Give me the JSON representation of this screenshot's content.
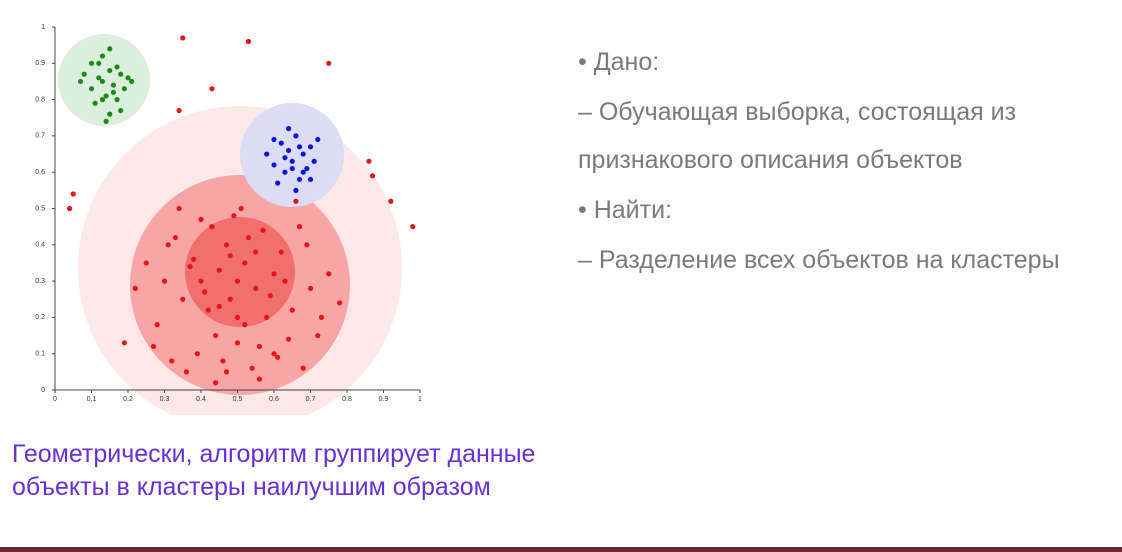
{
  "chart_data": {
    "type": "scatter",
    "xlim": [
      0,
      1
    ],
    "ylim": [
      0,
      1
    ],
    "xticks": [
      0,
      0.1,
      0.2,
      0.3,
      0.4,
      0.5,
      0.6,
      0.7,
      0.8,
      0.9,
      1
    ],
    "yticks": [
      0,
      0.1,
      0.2,
      0.3,
      0.4,
      0.5,
      0.6,
      0.7,
      0.8,
      0.9,
      1
    ],
    "series": [
      {
        "color": "#1a8a1a",
        "x": [
          0.08,
          0.1,
          0.12,
          0.13,
          0.14,
          0.15,
          0.16,
          0.17,
          0.18,
          0.19,
          0.2,
          0.11,
          0.13,
          0.15,
          0.17,
          0.12,
          0.16,
          0.14,
          0.18,
          0.1,
          0.21,
          0.07,
          0.15,
          0.13
        ],
        "y": [
          0.87,
          0.83,
          0.9,
          0.85,
          0.81,
          0.88,
          0.84,
          0.8,
          0.87,
          0.83,
          0.86,
          0.79,
          0.92,
          0.76,
          0.89,
          0.86,
          0.82,
          0.74,
          0.77,
          0.9,
          0.85,
          0.85,
          0.94,
          0.8
        ]
      },
      {
        "color": "#0a14e0",
        "x": [
          0.58,
          0.6,
          0.62,
          0.63,
          0.64,
          0.65,
          0.66,
          0.67,
          0.68,
          0.69,
          0.7,
          0.71,
          0.72,
          0.61,
          0.64,
          0.66,
          0.68,
          0.63,
          0.67,
          0.65,
          0.6,
          0.7
        ],
        "y": [
          0.65,
          0.62,
          0.68,
          0.6,
          0.66,
          0.63,
          0.7,
          0.58,
          0.65,
          0.61,
          0.67,
          0.63,
          0.69,
          0.57,
          0.72,
          0.55,
          0.6,
          0.64,
          0.67,
          0.61,
          0.69,
          0.58
        ]
      },
      {
        "color": "#e8141a",
        "x": [
          0.5,
          0.45,
          0.55,
          0.48,
          0.52,
          0.4,
          0.6,
          0.42,
          0.58,
          0.47,
          0.53,
          0.38,
          0.62,
          0.44,
          0.56,
          0.35,
          0.65,
          0.3,
          0.7,
          0.28,
          0.72,
          0.33,
          0.67,
          0.25,
          0.75,
          0.46,
          0.54,
          0.49,
          0.51,
          0.43,
          0.57,
          0.39,
          0.61,
          0.36,
          0.64,
          0.31,
          0.69,
          0.27,
          0.73,
          0.41,
          0.59,
          0.5,
          0.48,
          0.52,
          0.45,
          0.55,
          0.34,
          0.66,
          0.22,
          0.78,
          0.32,
          0.68,
          0.44,
          0.56,
          0.4,
          0.6,
          0.37,
          0.63,
          0.5,
          0.47,
          0.35,
          0.53,
          0.75,
          0.43,
          0.34,
          0.05,
          0.04,
          0.86,
          0.87,
          0.92,
          0.98,
          0.19
        ],
        "y": [
          0.3,
          0.33,
          0.28,
          0.25,
          0.35,
          0.3,
          0.32,
          0.22,
          0.2,
          0.4,
          0.42,
          0.36,
          0.38,
          0.15,
          0.12,
          0.25,
          0.22,
          0.3,
          0.28,
          0.18,
          0.15,
          0.42,
          0.45,
          0.35,
          0.32,
          0.08,
          0.06,
          0.48,
          0.5,
          0.45,
          0.44,
          0.1,
          0.09,
          0.05,
          0.14,
          0.4,
          0.4,
          0.12,
          0.2,
          0.27,
          0.26,
          0.2,
          0.37,
          0.18,
          0.23,
          0.38,
          0.5,
          0.52,
          0.28,
          0.24,
          0.08,
          0.06,
          0.02,
          0.03,
          0.47,
          0.1,
          0.34,
          0.3,
          0.13,
          0.05,
          0.97,
          0.96,
          0.9,
          0.83,
          0.77,
          0.54,
          0.5,
          0.63,
          0.59,
          0.52,
          0.45,
          0.13
        ]
      }
    ]
  },
  "slide": {
    "bullets": [
      "• Дано:",
      "– Обучающая выборка, состоящая из признакового описания объектов",
      "• Найти:",
      "– Разделение всех объектов на кластеры"
    ],
    "caption": "Геометрически, алгоритм группирует данные объекты в кластеры наилучшим образом"
  }
}
